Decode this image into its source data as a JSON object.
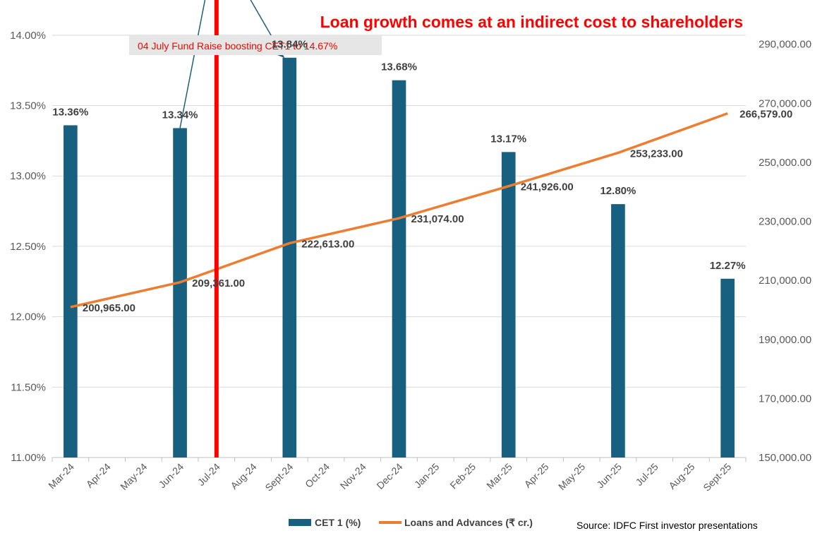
{
  "chart_data": {
    "type": "bar+line",
    "title": "Loan growth comes at an indirect cost to shareholders",
    "categories": [
      "Mar-24",
      "Apr-24",
      "May-24",
      "Jun-24",
      "Jul-24",
      "Aug-24",
      "Sept-24",
      "Oct-24",
      "Nov-24",
      "Dec-24",
      "Jan-25",
      "Feb-25",
      "Mar-25",
      "Apr-25",
      "May-25",
      "Jun-25",
      "Jul-25",
      "Aug-25",
      "Sept-25"
    ],
    "series": [
      {
        "name": "CET 1 (%)",
        "type": "bar",
        "axis": "left",
        "color": "#17607f",
        "values": [
          13.36,
          null,
          null,
          13.34,
          null,
          null,
          13.84,
          null,
          null,
          13.68,
          null,
          null,
          13.17,
          null,
          null,
          12.8,
          null,
          null,
          12.27
        ],
        "labels": [
          "13.36%",
          "",
          "",
          "13.34%",
          "",
          "",
          "13.84%",
          "",
          "",
          "13.68%",
          "",
          "",
          "13.17%",
          "",
          "",
          "12.80%",
          "",
          "",
          "12.27%"
        ]
      },
      {
        "name": "Loans and Advances (₹ cr.)",
        "type": "line",
        "axis": "right",
        "color": "#ed7d31",
        "values": [
          200965,
          null,
          null,
          209361,
          null,
          null,
          222613,
          null,
          null,
          231074,
          null,
          null,
          241926,
          null,
          null,
          253233,
          null,
          null,
          266579
        ],
        "labels": [
          "200,965.00",
          "",
          "",
          "209,361.00",
          "",
          "",
          "222,613.00",
          "",
          "",
          "231,074.00",
          "",
          "",
          "241,926.00",
          "",
          "",
          "253,233.00",
          "",
          "",
          "266,579.00"
        ]
      }
    ],
    "y_left": {
      "ylim": [
        11.0,
        14.25
      ],
      "ticks": [
        11.0,
        11.5,
        12.0,
        12.5,
        13.0,
        13.5,
        14.0
      ],
      "tick_labels": [
        "11.00%",
        "11.50%",
        "12.00%",
        "12.50%",
        "13.00%",
        "13.50%",
        "14.00%"
      ]
    },
    "y_right": {
      "ylim": [
        150000,
        305000
      ],
      "ticks": [
        150000,
        170000,
        190000,
        210000,
        230000,
        250000,
        270000,
        290000
      ],
      "tick_labels": [
        "150,000.00",
        "170,000.00",
        "190,000.00",
        "210,000.00",
        "230,000.00",
        "250,000.00",
        "270,000.00",
        "290,000.00"
      ]
    },
    "annotation": {
      "text": "04 July Fund Raise boosting CET1 to 14.67%",
      "category": "Jul-24",
      "peak_value": 14.67,
      "arrow_color": "#ff0000"
    },
    "source": "Source: IDFC First investor presentations",
    "legend_position": "bottom",
    "grid": true
  }
}
